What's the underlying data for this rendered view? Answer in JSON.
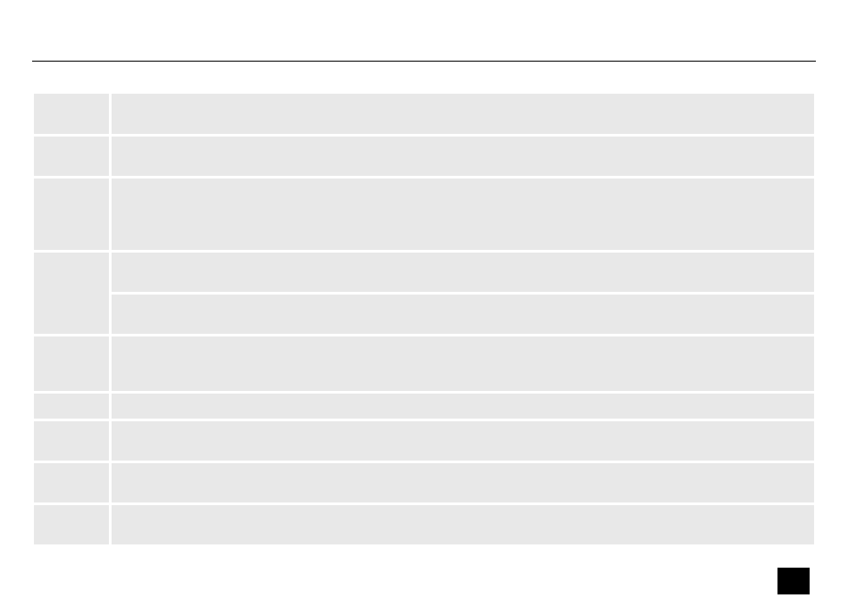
{
  "colors": {
    "cell_background": "#e8e8e8",
    "rule": "#000000",
    "page_marker": "#000000"
  },
  "table": {
    "rows": [
      {
        "label": "",
        "content": [
          ""
        ]
      },
      {
        "label": "",
        "content": [
          ""
        ]
      },
      {
        "label": "",
        "content": [
          ""
        ]
      },
      {
        "label": "",
        "content": [
          "",
          ""
        ]
      },
      {
        "label": "",
        "content": [
          ""
        ]
      },
      {
        "label": "",
        "content": [
          ""
        ]
      },
      {
        "label": "",
        "content": [
          ""
        ]
      },
      {
        "label": "",
        "content": [
          ""
        ]
      },
      {
        "label": "",
        "content": [
          ""
        ]
      }
    ]
  }
}
